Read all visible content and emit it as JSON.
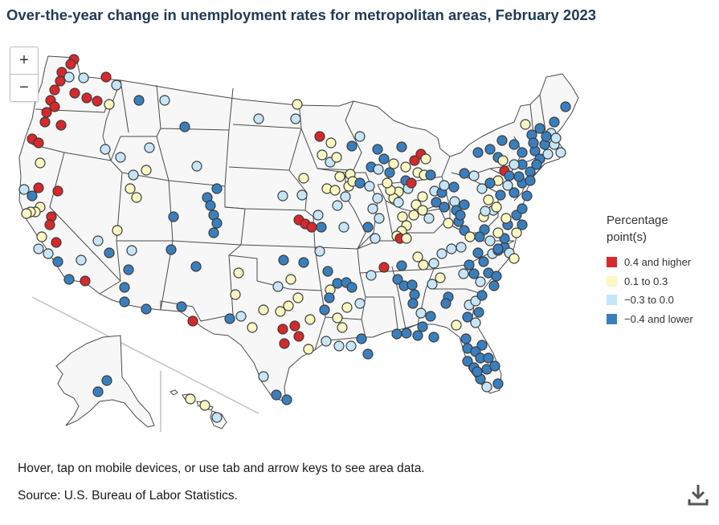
{
  "title": "Over-the-year change in unemployment rates for metropolitan areas, February 2023",
  "zoom": {
    "in_label": "+",
    "out_label": "−"
  },
  "legend": {
    "title": "Percentage point(s)",
    "items": [
      {
        "label": "0.4 and higher",
        "color": "#d7282b"
      },
      {
        "label": "0.1 to 0.3",
        "color": "#fcf8c2"
      },
      {
        "label": "−0.3 to 0.0",
        "color": "#c6e5f9"
      },
      {
        "label": "−0.4 and lower",
        "color": "#3a7fbd"
      }
    ]
  },
  "note": "Hover, tap on mobile devices, or use tab and arrow keys to see area data.",
  "source": "Source: U.S. Bureau of Labor Statistics.",
  "icons": {
    "download": "download-icon"
  },
  "map_style": {
    "land": "#f7f7f7",
    "border": "#4a4a4a",
    "marker_stroke": "#3a3a3a"
  }
}
